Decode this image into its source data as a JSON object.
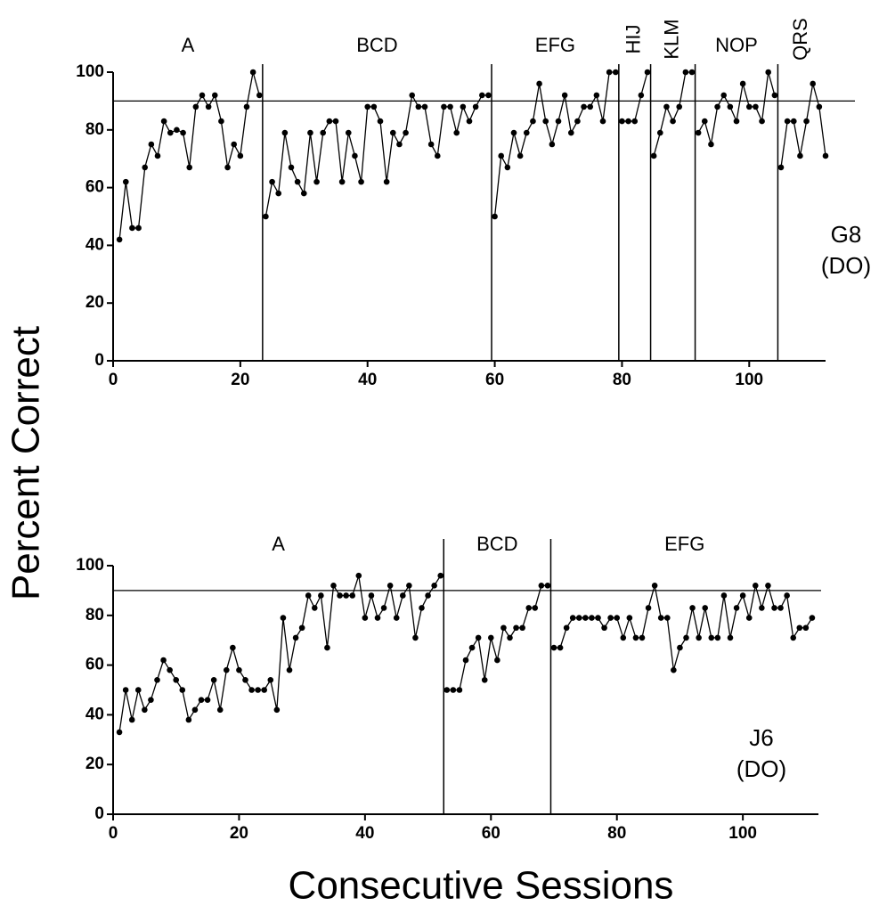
{
  "ylabel": "Percent Correct",
  "xlabel": "Consecutive Sessions",
  "chart_data": [
    {
      "type": "line",
      "color": "#000000",
      "xlim": [
        0,
        112
      ],
      "ylim": [
        0,
        100
      ],
      "xticks": [
        0,
        20,
        40,
        60,
        80,
        100
      ],
      "yticks": [
        0,
        20,
        40,
        60,
        80,
        100
      ],
      "criterion": 90,
      "phases": [
        "A",
        "BCD",
        "EFG",
        "HIJ",
        "KLM",
        "NOP",
        "QRS"
      ],
      "phase_lines": [
        23.5,
        59.5,
        79.5,
        84.5,
        91.5,
        104.5
      ],
      "annotation": [
        "G8",
        "(DO)"
      ],
      "x": [
        1,
        2,
        3,
        4,
        5,
        6,
        7,
        8,
        9,
        10,
        11,
        12,
        13,
        14,
        15,
        16,
        17,
        18,
        19,
        20,
        21,
        22,
        23,
        24,
        25,
        26,
        27,
        28,
        29,
        30,
        31,
        32,
        33,
        34,
        35,
        36,
        37,
        38,
        39,
        40,
        41,
        42,
        43,
        44,
        45,
        46,
        47,
        48,
        49,
        50,
        51,
        52,
        53,
        54,
        55,
        56,
        57,
        58,
        59,
        60,
        61,
        62,
        63,
        64,
        65,
        66,
        67,
        68,
        69,
        70,
        71,
        72,
        73,
        74,
        75,
        76,
        77,
        78,
        79,
        80,
        81,
        82,
        83,
        84,
        85,
        86,
        87,
        88,
        89,
        90,
        91,
        92,
        93,
        94,
        95,
        96,
        97,
        98,
        99,
        100,
        101,
        102,
        103,
        104,
        105,
        106,
        107,
        108,
        109,
        110,
        111,
        112
      ],
      "values": [
        42,
        62,
        46,
        46,
        67,
        75,
        71,
        83,
        79,
        80,
        79,
        67,
        88,
        92,
        88,
        92,
        83,
        67,
        75,
        71,
        88,
        100,
        92,
        50,
        62,
        58,
        79,
        67,
        62,
        58,
        79,
        62,
        79,
        83,
        83,
        62,
        79,
        71,
        62,
        88,
        88,
        83,
        62,
        79,
        75,
        79,
        92,
        88,
        88,
        75,
        71,
        88,
        88,
        79,
        88,
        83,
        88,
        92,
        92,
        50,
        71,
        67,
        79,
        71,
        79,
        83,
        96,
        83,
        75,
        83,
        92,
        79,
        83,
        88,
        88,
        92,
        83,
        100,
        100,
        83,
        83,
        83,
        92,
        100,
        71,
        79,
        88,
        83,
        88,
        100,
        100,
        79,
        83,
        75,
        88,
        92,
        88,
        83,
        96,
        88,
        88,
        83,
        100,
        92,
        67,
        83,
        83,
        71,
        83,
        96,
        88,
        71
      ]
    },
    {
      "type": "line",
      "color": "#000000",
      "xlim": [
        0,
        112
      ],
      "ylim": [
        0,
        100
      ],
      "xticks": [
        0,
        20,
        40,
        60,
        80,
        100
      ],
      "yticks": [
        0,
        20,
        40,
        60,
        80,
        100
      ],
      "criterion": 90,
      "phases": [
        "A",
        "BCD",
        "EFG"
      ],
      "phase_lines": [
        52.5,
        69.5
      ],
      "annotation": [
        "J6",
        "(DO)"
      ],
      "x": [
        1,
        2,
        3,
        4,
        5,
        6,
        7,
        8,
        9,
        10,
        11,
        12,
        13,
        14,
        15,
        16,
        17,
        18,
        19,
        20,
        21,
        22,
        23,
        24,
        25,
        26,
        27,
        28,
        29,
        30,
        31,
        32,
        33,
        34,
        35,
        36,
        37,
        38,
        39,
        40,
        41,
        42,
        43,
        44,
        45,
        46,
        47,
        48,
        49,
        50,
        51,
        52,
        53,
        54,
        55,
        56,
        57,
        58,
        59,
        60,
        61,
        62,
        63,
        64,
        65,
        66,
        67,
        68,
        69,
        70,
        71,
        72,
        73,
        74,
        75,
        76,
        77,
        78,
        79,
        80,
        81,
        82,
        83,
        84,
        85,
        86,
        87,
        88,
        89,
        90,
        91,
        92,
        93,
        94,
        95,
        96,
        97,
        98,
        99,
        100,
        101,
        102,
        103,
        104,
        105,
        106,
        107,
        108,
        109,
        110,
        111
      ],
      "values": [
        33,
        50,
        38,
        50,
        42,
        46,
        54,
        62,
        58,
        54,
        50,
        38,
        42,
        46,
        46,
        54,
        42,
        58,
        67,
        58,
        54,
        50,
        50,
        50,
        54,
        42,
        79,
        58,
        71,
        75,
        88,
        83,
        88,
        67,
        92,
        88,
        88,
        88,
        96,
        79,
        88,
        79,
        83,
        92,
        79,
        88,
        92,
        71,
        83,
        88,
        92,
        96,
        50,
        50,
        50,
        62,
        67,
        71,
        54,
        71,
        62,
        75,
        71,
        75,
        75,
        83,
        83,
        92,
        92,
        67,
        67,
        75,
        79,
        79,
        79,
        79,
        79,
        75,
        79,
        79,
        71,
        79,
        71,
        71,
        83,
        92,
        79,
        79,
        58,
        67,
        71,
        83,
        71,
        83,
        71,
        71,
        88,
        71,
        83,
        88,
        79,
        92,
        83,
        92,
        83,
        83,
        88,
        71,
        75,
        75,
        79
      ]
    }
  ]
}
